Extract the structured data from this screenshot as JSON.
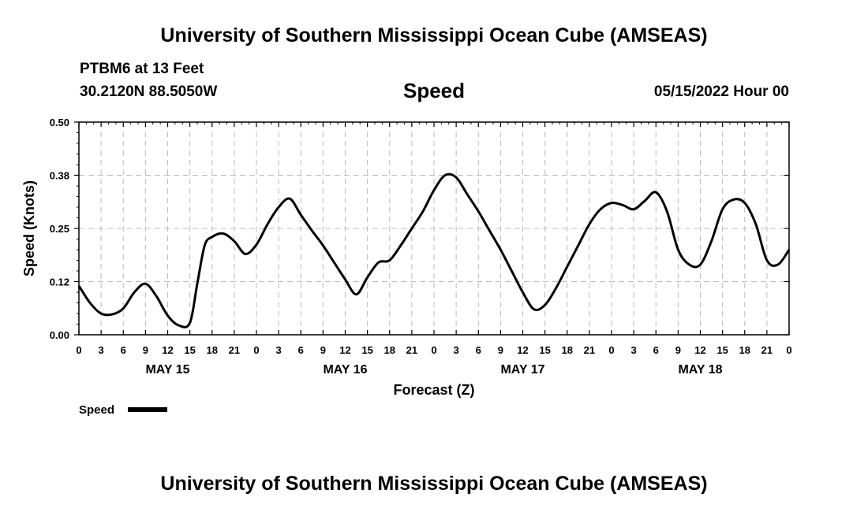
{
  "header": {
    "title": "University of Southern Mississippi Ocean Cube (AMSEAS)",
    "station": "PTBM6 at 13 Feet",
    "coords": "30.2120N  88.5050W",
    "subtitle": "Speed",
    "datetime": "05/15/2022 Hour 00"
  },
  "footer": {
    "title": "University of Southern Mississippi Ocean Cube (AMSEAS)"
  },
  "chart_data": {
    "type": "line",
    "title": "Speed",
    "xlabel": "Forecast (Z)",
    "ylabel": "Speed (Knots)",
    "xlim": [
      0,
      96
    ],
    "ylim": [
      0,
      0.5
    ],
    "yticks": [
      "0.00",
      "0.12",
      "0.25",
      "0.38",
      "0.50"
    ],
    "ytick_values": [
      0,
      0.125,
      0.25,
      0.375,
      0.5
    ],
    "xtick_labels": [
      "0",
      "3",
      "6",
      "9",
      "12",
      "15",
      "18",
      "21",
      "0",
      "3",
      "6",
      "9",
      "12",
      "15",
      "18",
      "21",
      "0",
      "3",
      "6",
      "9",
      "12",
      "15",
      "18",
      "21",
      "0",
      "3",
      "6",
      "9",
      "12",
      "15",
      "18",
      "21",
      "0"
    ],
    "day_labels": [
      {
        "label": "MAY 15",
        "x": 12
      },
      {
        "label": "MAY 16",
        "x": 36
      },
      {
        "label": "MAY 17",
        "x": 60
      },
      {
        "label": "MAY 18",
        "x": 84
      }
    ],
    "grid": true,
    "legend": "bottom-left",
    "series": [
      {
        "name": "Speed",
        "x": [
          0,
          1.5,
          3,
          4.5,
          6,
          7.5,
          9,
          10.5,
          12,
          13.5,
          15,
          16,
          17,
          18,
          19.5,
          21,
          22.5,
          24,
          25.5,
          27,
          28.5,
          30,
          31.5,
          33,
          34.5,
          36,
          37.5,
          39,
          40.5,
          42,
          43.5,
          45,
          46.5,
          48,
          49.5,
          51,
          52.5,
          54,
          55.5,
          57,
          58.5,
          60,
          61.5,
          63,
          64.5,
          66,
          67.5,
          69,
          70.5,
          72,
          73.5,
          75,
          76.5,
          78,
          79.5,
          81,
          82.5,
          84,
          85.5,
          87,
          88.5,
          90,
          91.5,
          93,
          94.5,
          96
        ],
        "values": [
          0.115,
          0.075,
          0.05,
          0.048,
          0.062,
          0.1,
          0.12,
          0.09,
          0.045,
          0.022,
          0.028,
          0.12,
          0.21,
          0.23,
          0.238,
          0.22,
          0.19,
          0.212,
          0.26,
          0.3,
          0.32,
          0.282,
          0.245,
          0.21,
          0.17,
          0.13,
          0.095,
          0.135,
          0.17,
          0.175,
          0.21,
          0.25,
          0.29,
          0.34,
          0.375,
          0.37,
          0.33,
          0.29,
          0.245,
          0.2,
          0.15,
          0.1,
          0.06,
          0.07,
          0.11,
          0.16,
          0.21,
          0.26,
          0.295,
          0.31,
          0.305,
          0.295,
          0.315,
          0.335,
          0.29,
          0.2,
          0.165,
          0.165,
          0.22,
          0.295,
          0.318,
          0.31,
          0.26,
          0.175,
          0.165,
          0.2
        ]
      }
    ]
  }
}
